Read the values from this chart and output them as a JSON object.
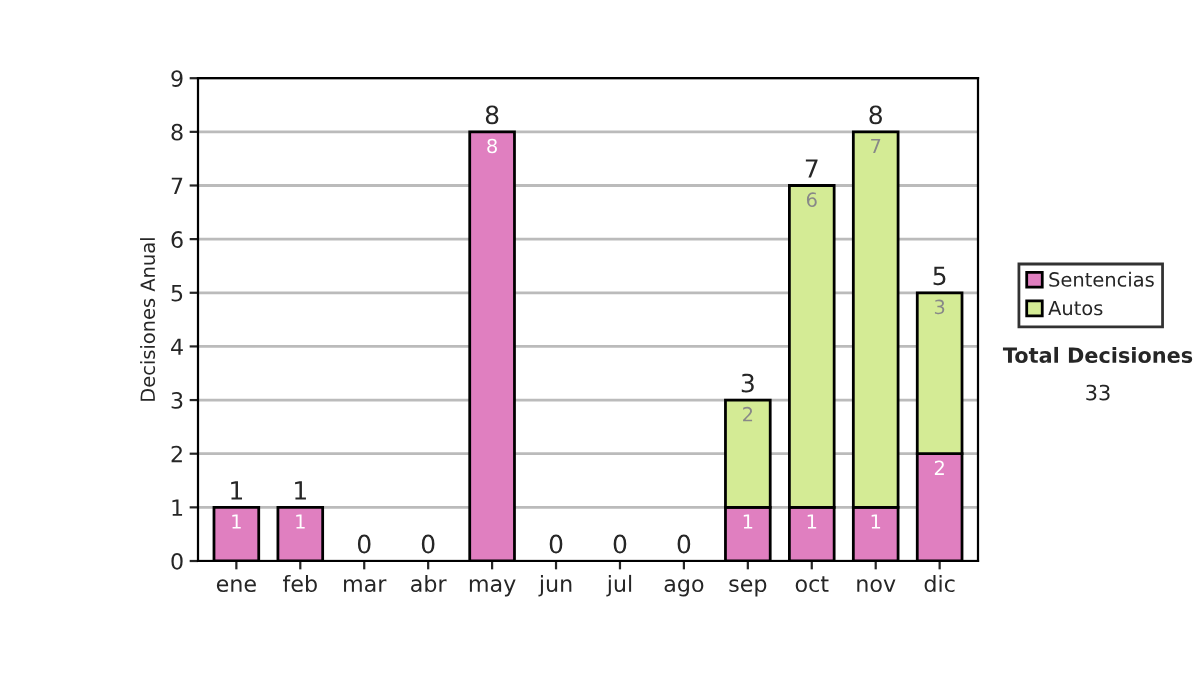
{
  "chart_data": {
    "type": "bar",
    "stacked": true,
    "ylabel": "Decisiones Anual",
    "categories": [
      "ene",
      "feb",
      "mar",
      "abr",
      "may",
      "jun",
      "jul",
      "ago",
      "sep",
      "oct",
      "nov",
      "dic"
    ],
    "series": [
      {
        "name": "Sentencias",
        "color": "#e07fc0",
        "values": [
          1,
          1,
          0,
          0,
          8,
          0,
          0,
          0,
          1,
          1,
          1,
          2
        ],
        "value_labels": [
          "1",
          "1",
          null,
          null,
          "8",
          null,
          null,
          null,
          "1",
          "1",
          "1",
          "2"
        ]
      },
      {
        "name": "Autos",
        "color": "#d4eb95",
        "values": [
          0,
          0,
          0,
          0,
          0,
          0,
          0,
          0,
          2,
          6,
          7,
          3
        ],
        "value_labels": [
          null,
          null,
          null,
          null,
          null,
          null,
          null,
          null,
          "2",
          "6",
          "7",
          "3"
        ]
      }
    ],
    "totals": [
      "1",
      "1",
      "0",
      "0",
      "8",
      "0",
      "0",
      "0",
      "3",
      "7",
      "8",
      "5"
    ],
    "ylim": [
      0,
      9
    ],
    "yticks": [
      0,
      1,
      2,
      3,
      4,
      5,
      6,
      7,
      8,
      9
    ],
    "grid": "y",
    "legend": "right",
    "annotations": [
      "Total Decisiones",
      "33"
    ]
  }
}
